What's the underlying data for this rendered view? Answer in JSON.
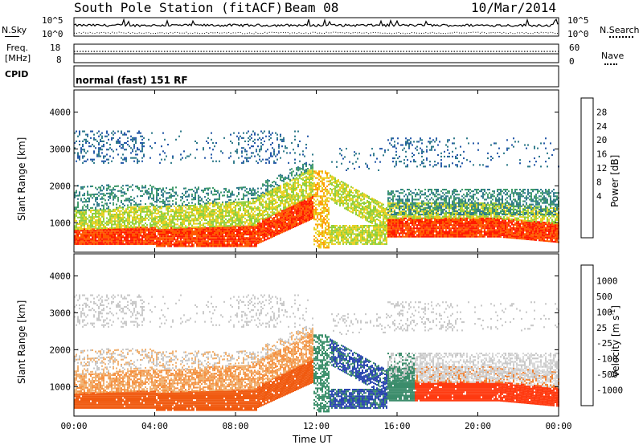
{
  "header": {
    "station": "South Pole Station (fitACF)",
    "beam": "Beam 08",
    "date": "10/Mar/2014"
  },
  "top_panels": {
    "nsky_label": "N.Sky",
    "nsearch_label": "N.Search",
    "noise_ticks": [
      "10^5",
      "10^0"
    ],
    "noise_ticks_right": [
      "10^5",
      "10^0"
    ],
    "freq_label_line1": "Freq.",
    "freq_label_line2": "[MHz]",
    "freq_ticks": [
      "18",
      "8"
    ],
    "nave_label": "Nave",
    "nave_ticks": [
      "60",
      "0"
    ],
    "cpid_label": "CPID",
    "mode_text": "normal (fast) 151 RF"
  },
  "chart_data": [
    {
      "type": "heatmap",
      "name": "power-panel",
      "xlabel": "Time UT",
      "ylabel": "Slant Range [km]",
      "x_ticks": [
        "00:00",
        "04:00",
        "08:00",
        "12:00",
        "16:00",
        "20:00",
        "00:00"
      ],
      "y_ticks": [
        "1000",
        "2000",
        "3000",
        "4000"
      ],
      "xlim_hours": [
        0,
        24
      ],
      "ylim_km": [
        200,
        4600
      ],
      "colorbar": {
        "label": "Power [dB]",
        "ticks": [
          "28",
          "24",
          "20",
          "16",
          "12",
          "8",
          "4"
        ],
        "colors": [
          "#0000ff",
          "#1e4fb4",
          "#2f7a8a",
          "#3f9a6a",
          "#6abf3a",
          "#b5d90f",
          "#ffd700",
          "#ff9a00",
          "#ff5a00",
          "#ff0000"
        ]
      }
    },
    {
      "type": "heatmap",
      "name": "velocity-panel",
      "xlabel": "Time UT",
      "ylabel": "Slant Range [km]",
      "x_ticks": [
        "00:00",
        "04:00",
        "08:00",
        "12:00",
        "16:00",
        "20:00",
        "00:00"
      ],
      "y_ticks": [
        "1000",
        "2000",
        "3000",
        "4000"
      ],
      "xlim_hours": [
        0,
        24
      ],
      "ylim_km": [
        200,
        4600
      ],
      "colorbar": {
        "label": "Velocity [m s",
        "label_sup": "-1",
        "label_close": "]",
        "ticks": [
          "1000",
          "500",
          "100",
          "25",
          "-25",
          "-100",
          "-500",
          "-1000"
        ],
        "colors": [
          "#2a45b0",
          "#3b6fa0",
          "#3b8c6b",
          "#5cb33a",
          "#bfbfbf",
          "#f0c890",
          "#f5a050",
          "#f07020",
          "#ff2000"
        ]
      }
    }
  ]
}
